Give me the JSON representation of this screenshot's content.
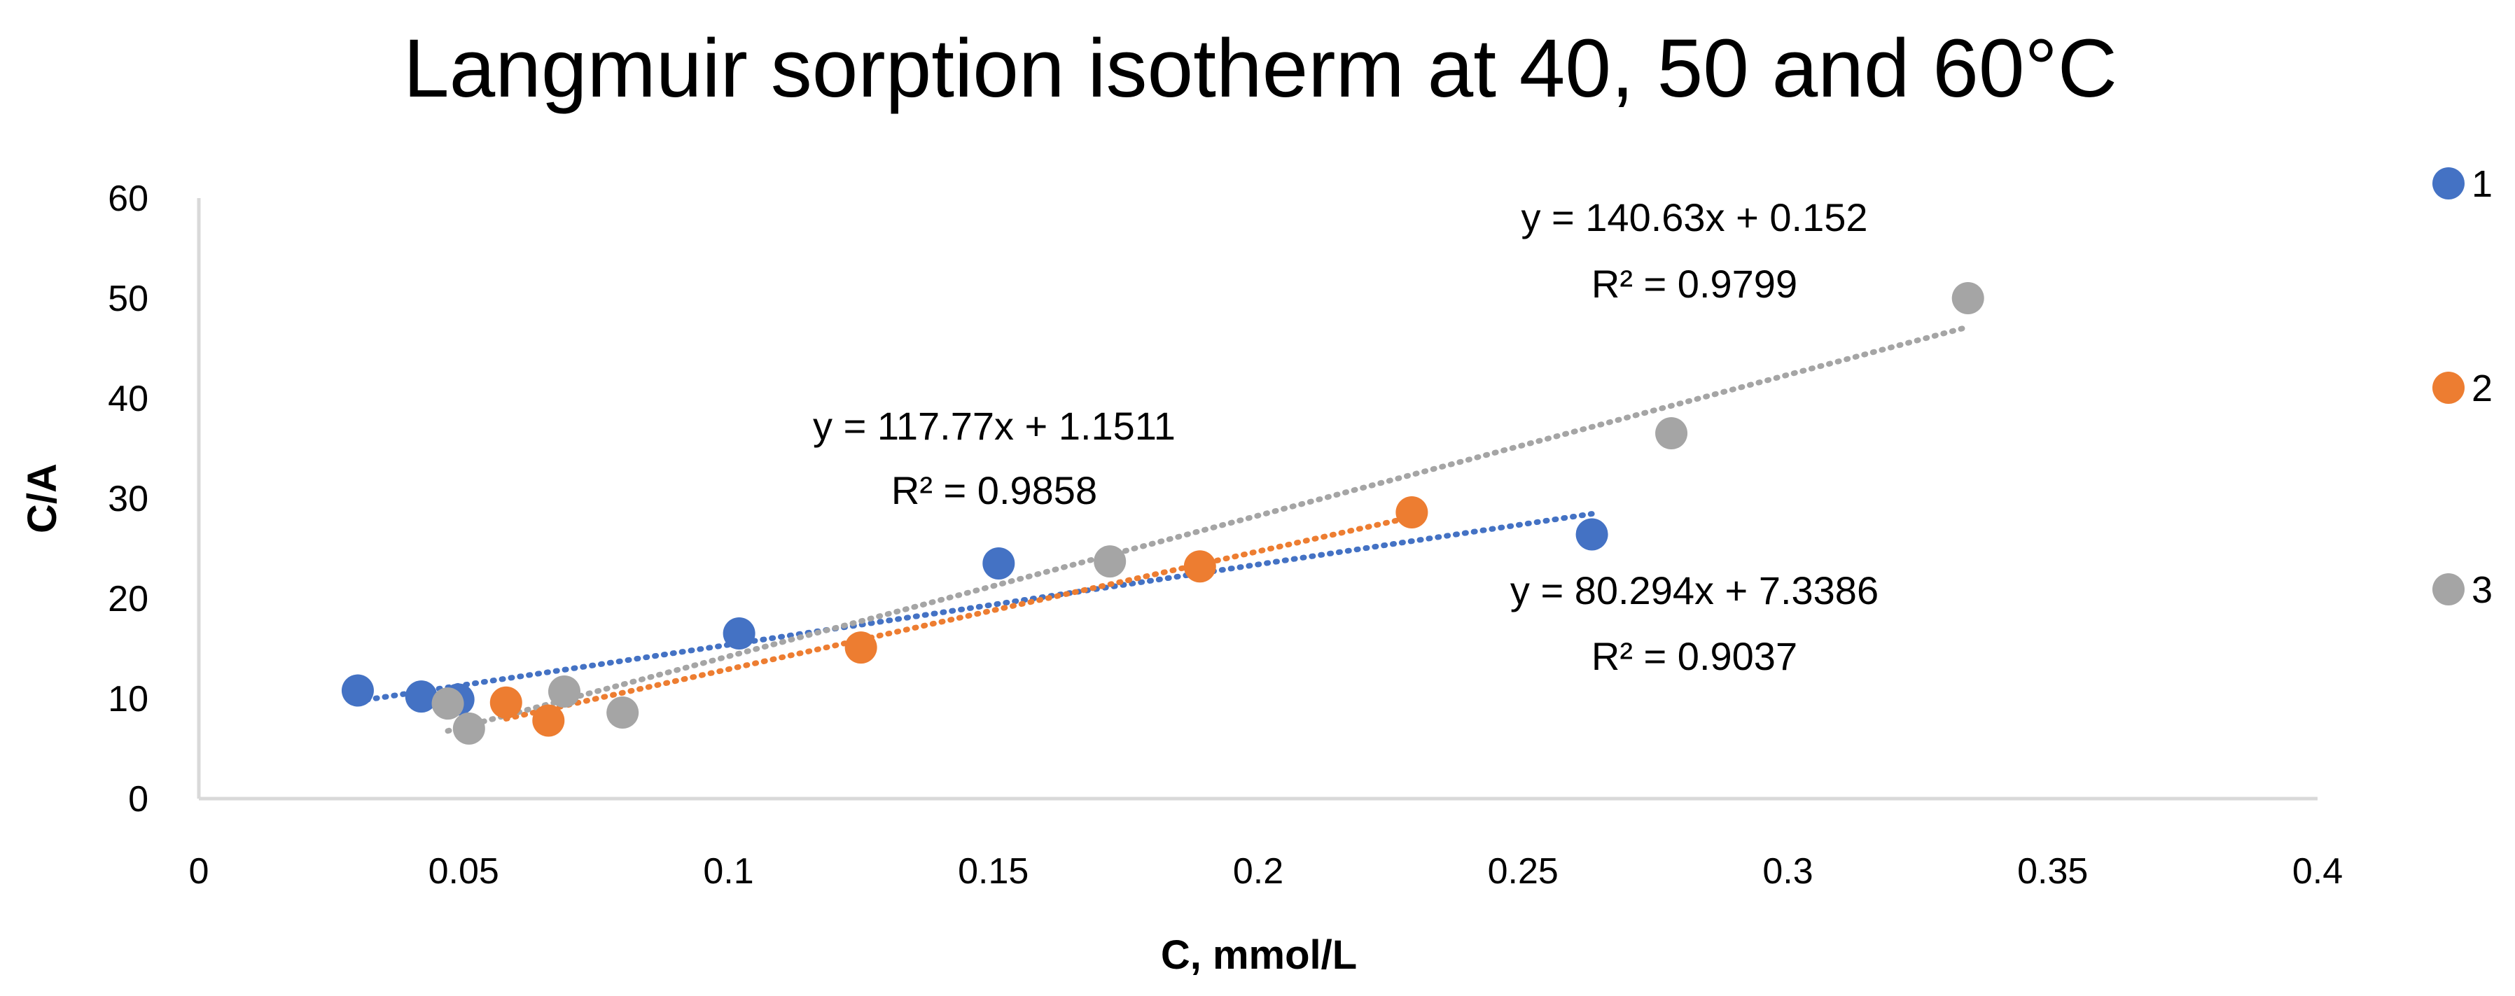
{
  "chart_data": {
    "type": "scatter",
    "title": "Langmuir sorption isotherm at 40, 50 and 60°C",
    "xlabel": "C, mmol/L",
    "ylabel": "C/A",
    "xlim": [
      0,
      0.4
    ],
    "ylim": [
      0,
      60
    ],
    "xticks": [
      0,
      0.05,
      0.1,
      0.15,
      0.2,
      0.25,
      0.3,
      0.35,
      0.4
    ],
    "xtick_labels": [
      "0",
      "0.05",
      "0.1",
      "0.15",
      "0.2",
      "0.25",
      "0.3",
      "0.35",
      "0.4"
    ],
    "yticks": [
      0,
      10,
      20,
      30,
      40,
      50,
      60
    ],
    "ytick_labels": [
      "0",
      "10",
      "20",
      "30",
      "40",
      "50",
      "60"
    ],
    "grid": false,
    "legend_position": "right",
    "series": [
      {
        "name": "1",
        "color": "#4472C4",
        "x": [
          0.03,
          0.042,
          0.049,
          0.102,
          0.151,
          0.263
        ],
        "y": [
          10.8,
          10.2,
          9.9,
          16.5,
          23.5,
          26.4
        ],
        "trendline": {
          "slope": 80.294,
          "intercept": 7.3386,
          "x_range": [
            0.03,
            0.263
          ],
          "equation": "y = 80.294x + 7.3386",
          "r2": "R² = 0.9037"
        }
      },
      {
        "name": "2",
        "color": "#ED7D31",
        "x": [
          0.058,
          0.066,
          0.125,
          0.189,
          0.229
        ],
        "y": [
          9.6,
          7.8,
          15.1,
          23.2,
          28.6
        ],
        "trendline": {
          "slope": 117.77,
          "intercept": 1.1511,
          "x_range": [
            0.058,
            0.229
          ],
          "equation": "y = 117.77x + 1.1511",
          "r2": "R² = 0.9858"
        }
      },
      {
        "name": "3",
        "color": "#A5A5A5",
        "x": [
          0.047,
          0.051,
          0.069,
          0.08,
          0.172,
          0.278,
          0.334
        ],
        "y": [
          9.5,
          7.0,
          10.7,
          8.6,
          23.7,
          36.5,
          50.0
        ],
        "trendline": {
          "slope": 140.63,
          "intercept": 0.152,
          "x_range": [
            0.047,
            0.334
          ],
          "equation": "y = 140.63x + 0.152",
          "r2": "R² = 0.9799"
        }
      }
    ]
  }
}
